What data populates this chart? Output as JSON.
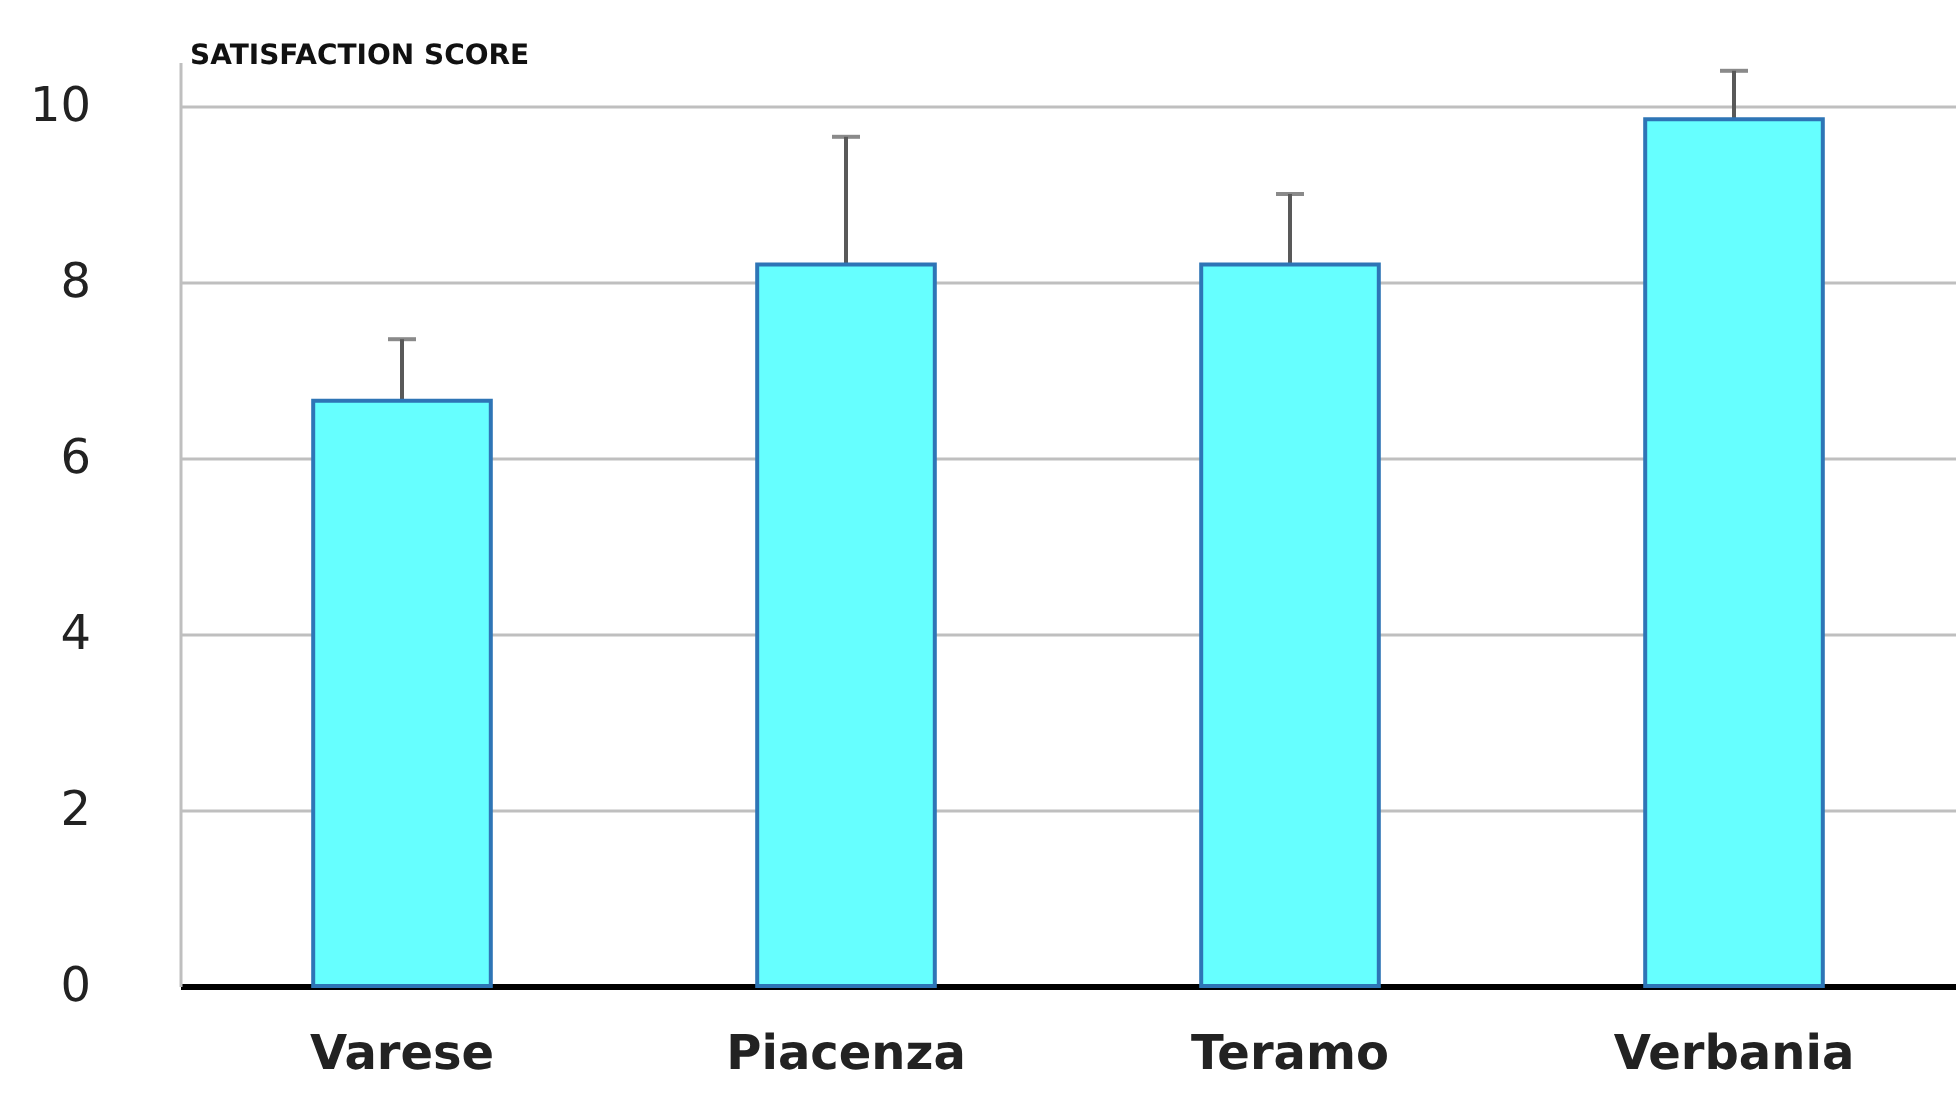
{
  "chart_data": {
    "type": "bar",
    "title": "SATISFACTION SCORE",
    "categories": [
      "Varese",
      "Piacenza",
      "Teramo",
      "Verbania"
    ],
    "values": [
      6.65,
      8.2,
      8.2,
      9.85
    ],
    "errors": [
      0.7,
      1.45,
      0.8,
      0.55
    ],
    "color": "#66ffff",
    "ylim": [
      0,
      10.5
    ],
    "yticks": [
      0,
      2,
      4,
      6,
      8,
      10
    ],
    "grid": "y"
  }
}
